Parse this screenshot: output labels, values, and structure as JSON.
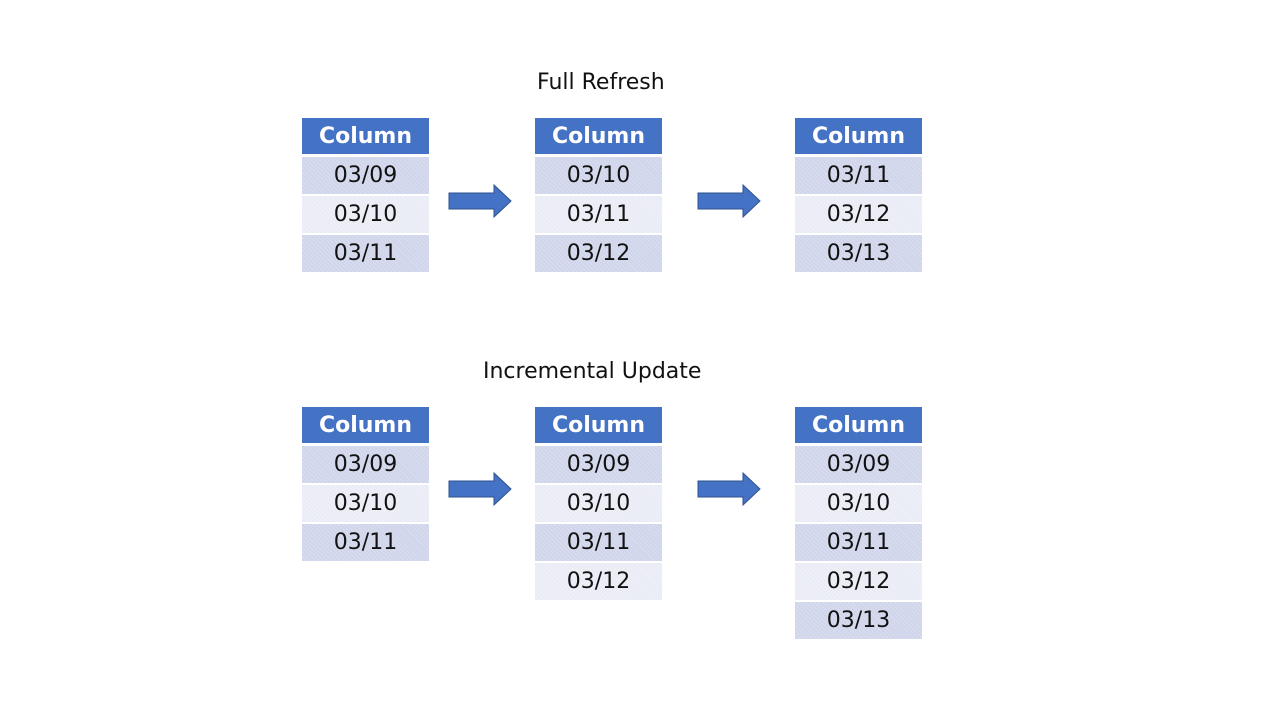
{
  "colors": {
    "header_fill": "#4472C4",
    "row_dark": "#CFD5EA",
    "row_light": "#E9EBF5",
    "arrow_fill": "#4472C4",
    "arrow_stroke": "#2F528F"
  },
  "full_refresh": {
    "title": "Full Refresh",
    "tables": [
      {
        "header": "Column",
        "rows": [
          "03/09",
          "03/10",
          "03/11"
        ]
      },
      {
        "header": "Column",
        "rows": [
          "03/10",
          "03/11",
          "03/12"
        ]
      },
      {
        "header": "Column",
        "rows": [
          "03/11",
          "03/12",
          "03/13"
        ]
      }
    ]
  },
  "incremental_update": {
    "title": "Incremental Update",
    "tables": [
      {
        "header": "Column",
        "rows": [
          "03/09",
          "03/10",
          "03/11"
        ]
      },
      {
        "header": "Column",
        "rows": [
          "03/09",
          "03/10",
          "03/11",
          "03/12"
        ]
      },
      {
        "header": "Column",
        "rows": [
          "03/09",
          "03/10",
          "03/11",
          "03/12",
          "03/13"
        ]
      }
    ]
  }
}
